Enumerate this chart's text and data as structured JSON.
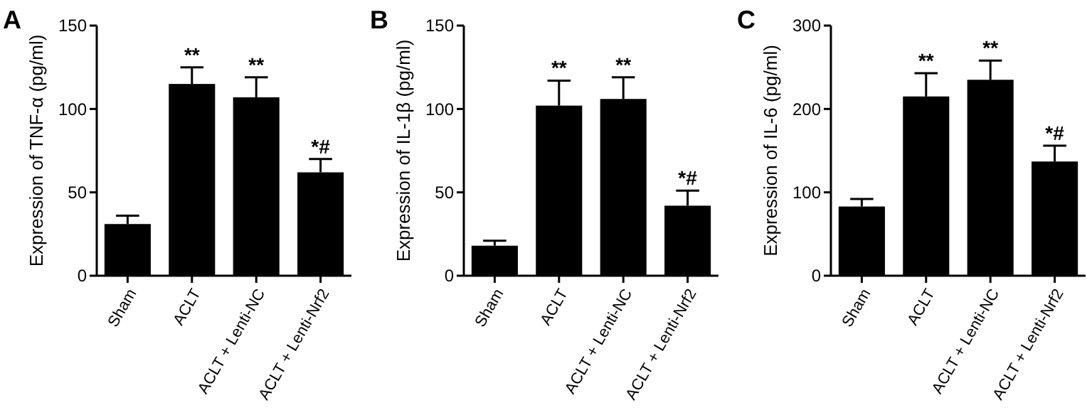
{
  "chart_data": [
    {
      "type": "bar",
      "title": "A",
      "ylabel": "Expression of TNF-α  (pg/ml)",
      "categories": [
        "Sham",
        "ACLT",
        "ACLT + Lenti-NC",
        "ACLT + Lenti-Nrf2"
      ],
      "values": [
        31,
        115,
        107,
        62
      ],
      "errors": [
        5,
        10,
        12,
        8
      ],
      "color": "#000000",
      "ylim": [
        0,
        150
      ],
      "yticks": [
        0,
        50,
        100,
        150
      ],
      "grid": false,
      "annotations": [
        {
          "text": "**",
          "x": "ACLT",
          "y": 125
        },
        {
          "text": "**",
          "x": "ACLT + Lenti-NC",
          "y": 119
        },
        {
          "text": "*#",
          "x": "ACLT + Lenti-Nrf2",
          "y": 70
        }
      ]
    },
    {
      "type": "bar",
      "title": "B",
      "ylabel": "Expression of IL-1β  (pg/ml)",
      "categories": [
        "Sham",
        "ACLT",
        "ACLT + Lenti-NC",
        "ACLT + Lenti-Nrf2"
      ],
      "values": [
        18,
        102,
        106,
        42
      ],
      "errors": [
        3,
        15,
        13,
        9
      ],
      "color": "#000000",
      "ylim": [
        0,
        150
      ],
      "yticks": [
        0,
        50,
        100,
        150
      ],
      "grid": false,
      "annotations": [
        {
          "text": "**",
          "x": "ACLT",
          "y": 117
        },
        {
          "text": "**",
          "x": "ACLT + Lenti-NC",
          "y": 119
        },
        {
          "text": "*#",
          "x": "ACLT + Lenti-Nrf2",
          "y": 51
        }
      ]
    },
    {
      "type": "bar",
      "title": "C",
      "ylabel": "Expression of IL-6 (pg/ml)",
      "categories": [
        "Sham",
        "ACLT",
        "ACLT + Lenti-NC",
        "ACLT + Lenti-Nrf2"
      ],
      "values": [
        83,
        215,
        235,
        137
      ],
      "errors": [
        9,
        28,
        23,
        19
      ],
      "color": "#000000",
      "ylim": [
        0,
        300
      ],
      "yticks": [
        0,
        100,
        200,
        300
      ],
      "grid": false,
      "annotations": [
        {
          "text": "**",
          "x": "ACLT",
          "y": 243
        },
        {
          "text": "**",
          "x": "ACLT + Lenti-NC",
          "y": 258
        },
        {
          "text": "*#",
          "x": "ACLT + Lenti-Nrf2",
          "y": 156
        }
      ]
    }
  ]
}
